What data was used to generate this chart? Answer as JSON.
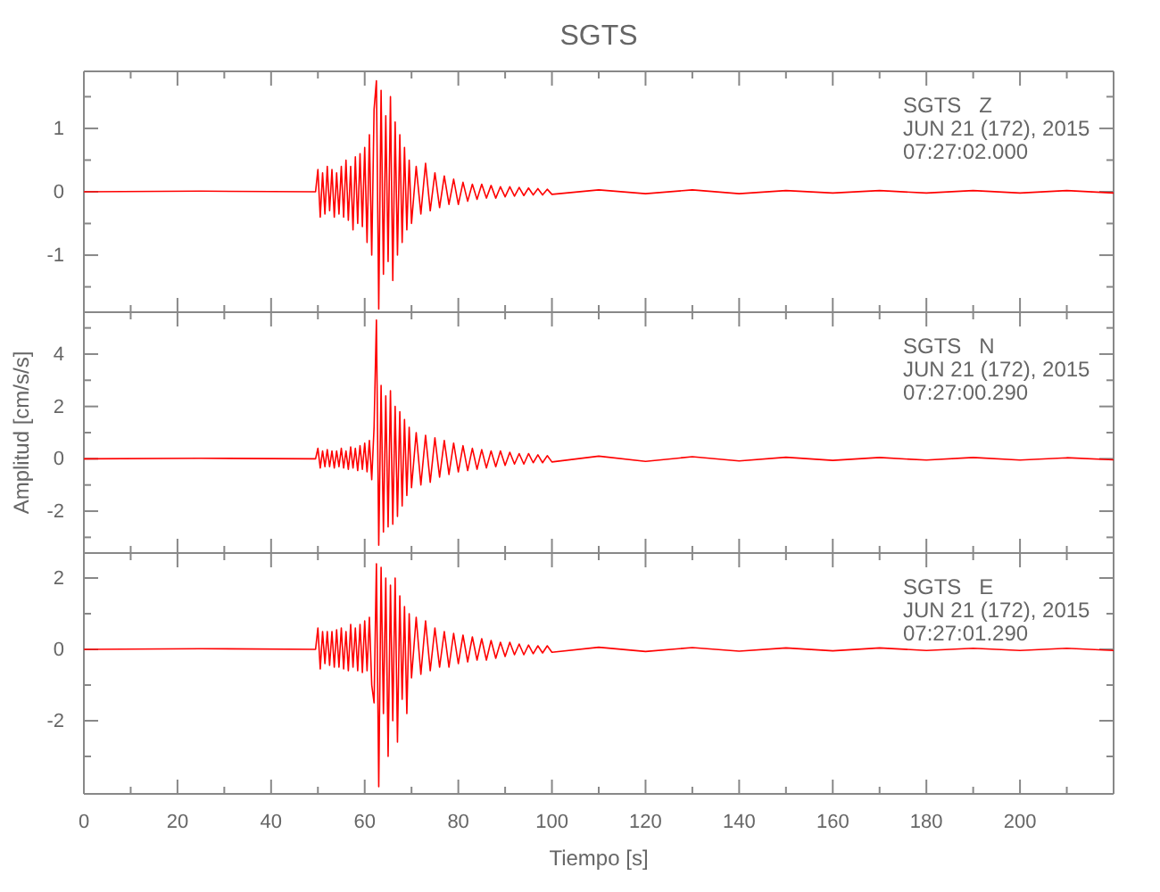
{
  "chart_data": [
    {
      "type": "line",
      "title": "SGTS",
      "tick_labels": "y",
      "marker": "none",
      "line_style": "solid",
      "grid": false,
      "annotations": [
        "SGTS   Z",
        "JUN 21 (172), 2015",
        "07:27:02.000"
      ],
      "x": [
        0,
        25,
        49.5,
        50,
        50.5,
        51,
        51.5,
        52,
        52.5,
        53,
        53.5,
        54,
        54.5,
        55,
        55.5,
        56,
        56.5,
        57,
        57.5,
        58,
        58.5,
        59,
        59.5,
        60,
        60.5,
        61,
        61.5,
        62,
        62.5,
        63,
        63.5,
        64,
        64.5,
        65,
        65.5,
        66,
        66.5,
        67,
        67.5,
        68,
        68.5,
        69,
        69.5,
        70,
        71,
        72,
        73,
        74,
        75,
        76,
        77,
        78,
        79,
        80,
        81,
        82,
        83,
        84,
        85,
        86,
        87,
        88,
        89,
        90,
        91,
        92,
        93,
        94,
        95,
        96,
        97,
        98,
        99,
        100,
        110,
        120,
        130,
        140,
        150,
        160,
        170,
        180,
        190,
        200,
        210,
        220
      ],
      "xlim": [
        0,
        220
      ],
      "ylim": [
        -1.9,
        1.9
      ],
      "xticks": [
        0,
        {
          "value": 10,
          "label": null
        },
        20,
        {
          "value": 30,
          "label": null
        },
        40,
        {
          "value": 50,
          "label": null
        },
        60,
        {
          "value": 70,
          "label": null
        },
        80,
        {
          "value": 90,
          "label": null
        },
        100,
        {
          "value": 110,
          "label": null
        },
        120,
        {
          "value": 130,
          "label": null
        },
        140,
        {
          "value": 150,
          "label": null
        },
        160,
        {
          "value": 170,
          "label": null
        },
        180,
        {
          "value": 190,
          "label": null
        },
        200,
        {
          "value": 210,
          "label": null
        }
      ],
      "yticks": [
        {
          "value": -1.5,
          "label": null
        },
        -1,
        {
          "value": -0.5,
          "label": null
        },
        0,
        {
          "value": 0.5,
          "label": null
        },
        1,
        {
          "value": 1.5,
          "label": null
        }
      ],
      "series": [
        {
          "color": "#ff0000",
          "values": [
            0,
            0.01,
            0,
            0.35,
            -0.4,
            0.3,
            -0.35,
            0.4,
            -0.3,
            0.35,
            -0.4,
            0.3,
            -0.35,
            0.4,
            -0.4,
            0.5,
            -0.45,
            0.4,
            -0.6,
            0.55,
            -0.5,
            0.6,
            -0.55,
            0.7,
            -0.8,
            0.9,
            -1.0,
            1.3,
            1.75,
            -1.85,
            1.6,
            -1.3,
            1.2,
            -1.1,
            1.5,
            -1.4,
            1.1,
            -1.0,
            0.9,
            -0.8,
            0.7,
            -0.6,
            0.5,
            -0.5,
            0.4,
            -0.35,
            0.45,
            -0.3,
            0.3,
            -0.25,
            0.25,
            -0.2,
            0.2,
            -0.2,
            0.15,
            -0.15,
            0.12,
            -0.12,
            0.12,
            -0.1,
            0.1,
            -0.1,
            0.08,
            -0.08,
            0.08,
            -0.07,
            0.07,
            -0.06,
            0.06,
            -0.05,
            0.05,
            -0.05,
            0.04,
            -0.04,
            0.03,
            -0.03,
            0.03,
            -0.03,
            0.02,
            -0.02,
            0.02,
            -0.02,
            0.02,
            -0.02,
            0.02,
            -0.02
          ]
        }
      ]
    },
    {
      "type": "line",
      "ylabel": "Amplitud [cm/s/s]",
      "tick_labels": "y",
      "marker": "none",
      "line_style": "solid",
      "grid": false,
      "annotations": [
        "SGTS   N",
        "JUN 21 (172), 2015",
        "07:27:00.290"
      ],
      "x": [
        0,
        25,
        49.5,
        50,
        50.5,
        51,
        51.5,
        52,
        52.5,
        53,
        53.5,
        54,
        54.5,
        55,
        55.5,
        56,
        56.5,
        57,
        57.5,
        58,
        58.5,
        59,
        59.5,
        60,
        60.5,
        61,
        61.5,
        62,
        62.5,
        63,
        63.5,
        64,
        64.5,
        65,
        65.5,
        66,
        66.5,
        67,
        67.5,
        68,
        68.5,
        69,
        69.5,
        70,
        71,
        72,
        73,
        74,
        75,
        76,
        77,
        78,
        79,
        80,
        81,
        82,
        83,
        84,
        85,
        86,
        87,
        88,
        89,
        90,
        91,
        92,
        93,
        94,
        95,
        96,
        97,
        98,
        99,
        100,
        110,
        120,
        130,
        140,
        150,
        160,
        170,
        180,
        190,
        200,
        210,
        220
      ],
      "xlim": [
        0,
        220
      ],
      "ylim": [
        -3.6,
        5.6
      ],
      "xticks": [
        0,
        {
          "value": 10,
          "label": null
        },
        20,
        {
          "value": 30,
          "label": null
        },
        40,
        {
          "value": 50,
          "label": null
        },
        60,
        {
          "value": 70,
          "label": null
        },
        80,
        {
          "value": 90,
          "label": null
        },
        100,
        {
          "value": 110,
          "label": null
        },
        120,
        {
          "value": 130,
          "label": null
        },
        140,
        {
          "value": 150,
          "label": null
        },
        160,
        {
          "value": 170,
          "label": null
        },
        180,
        {
          "value": 190,
          "label": null
        },
        200,
        {
          "value": 210,
          "label": null
        }
      ],
      "yticks": [
        {
          "value": -3,
          "label": null
        },
        -2,
        {
          "value": -1,
          "label": null
        },
        0,
        {
          "value": 1,
          "label": null
        },
        2,
        {
          "value": 3,
          "label": null
        },
        4,
        {
          "value": 5,
          "label": null
        }
      ],
      "series": [
        {
          "color": "#ff0000",
          "values": [
            0,
            0.02,
            0,
            0.4,
            -0.35,
            0.3,
            -0.3,
            0.35,
            -0.3,
            0.3,
            -0.35,
            0.3,
            -0.3,
            0.4,
            -0.35,
            0.3,
            -0.4,
            0.45,
            -0.35,
            0.4,
            -0.45,
            0.5,
            -0.4,
            0.6,
            -0.5,
            0.7,
            -0.8,
            1.2,
            5.3,
            -3.3,
            2.8,
            -2.8,
            2.4,
            -2.6,
            2.6,
            -2.5,
            2.0,
            -2.2,
            1.8,
            -1.8,
            1.5,
            -1.4,
            1.2,
            -1.1,
            1.0,
            -1.0,
            0.9,
            -0.9,
            0.8,
            -0.7,
            0.7,
            -0.6,
            0.6,
            -0.5,
            0.5,
            -0.45,
            0.4,
            -0.4,
            0.35,
            -0.35,
            0.3,
            -0.3,
            0.3,
            -0.25,
            0.25,
            -0.2,
            0.2,
            -0.2,
            0.2,
            -0.15,
            0.15,
            -0.15,
            0.12,
            -0.12,
            0.1,
            -0.1,
            0.08,
            -0.08,
            0.06,
            -0.06,
            0.05,
            -0.05,
            0.05,
            -0.05,
            0.04,
            -0.04
          ]
        }
      ]
    },
    {
      "type": "line",
      "xlabel": "Tiempo [s]",
      "marker": "none",
      "line_style": "solid",
      "grid": false,
      "annotations": [
        "SGTS   E",
        "JUN 21 (172), 2015",
        "07:27:01.290"
      ],
      "x": [
        0,
        25,
        49.5,
        50,
        50.5,
        51,
        51.5,
        52,
        52.5,
        53,
        53.5,
        54,
        54.5,
        55,
        55.5,
        56,
        56.5,
        57,
        57.5,
        58,
        58.5,
        59,
        59.5,
        60,
        60.5,
        61,
        61.5,
        62,
        62.5,
        63,
        63.5,
        64,
        64.5,
        65,
        65.5,
        66,
        66.5,
        67,
        67.5,
        68,
        68.5,
        69,
        69.5,
        70,
        71,
        72,
        73,
        74,
        75,
        76,
        77,
        78,
        79,
        80,
        81,
        82,
        83,
        84,
        85,
        86,
        87,
        88,
        89,
        90,
        91,
        92,
        93,
        94,
        95,
        96,
        97,
        98,
        99,
        100,
        110,
        120,
        130,
        140,
        150,
        160,
        170,
        180,
        190,
        200,
        210,
        220
      ],
      "xlim": [
        0,
        220
      ],
      "ylim": [
        -4.05,
        2.7
      ],
      "xticks": [
        0,
        {
          "value": 10,
          "label": null
        },
        20,
        {
          "value": 30,
          "label": null
        },
        40,
        {
          "value": 50,
          "label": null
        },
        60,
        {
          "value": 70,
          "label": null
        },
        80,
        {
          "value": 90,
          "label": null
        },
        100,
        {
          "value": 110,
          "label": null
        },
        120,
        {
          "value": 130,
          "label": null
        },
        140,
        {
          "value": 150,
          "label": null
        },
        160,
        {
          "value": 170,
          "label": null
        },
        180,
        {
          "value": 190,
          "label": null
        },
        200,
        {
          "value": 210,
          "label": null
        }
      ],
      "yticks": [
        {
          "value": -3,
          "label": null
        },
        -2,
        {
          "value": -1,
          "label": null
        },
        0,
        {
          "value": 1,
          "label": null
        },
        2
      ],
      "series": [
        {
          "color": "#ff0000",
          "values": [
            0,
            0.02,
            0,
            0.6,
            -0.55,
            0.5,
            -0.4,
            0.5,
            -0.45,
            0.5,
            -0.5,
            0.55,
            -0.5,
            0.6,
            -0.55,
            0.5,
            -0.6,
            0.7,
            -0.5,
            0.6,
            -0.6,
            0.7,
            -0.65,
            0.8,
            -0.6,
            0.9,
            -1.0,
            -1.5,
            2.4,
            -3.85,
            2.3,
            -1.8,
            2.0,
            -3.0,
            1.8,
            -2.0,
            2.0,
            -2.6,
            1.5,
            -1.4,
            1.2,
            -1.8,
            1.0,
            -0.8,
            0.9,
            -0.7,
            0.8,
            -0.6,
            0.6,
            -0.5,
            0.5,
            -0.5,
            0.45,
            -0.4,
            0.4,
            -0.35,
            0.35,
            -0.3,
            0.3,
            -0.3,
            0.25,
            -0.25,
            0.2,
            -0.2,
            0.2,
            -0.15,
            0.15,
            -0.15,
            0.12,
            -0.12,
            0.1,
            -0.1,
            0.1,
            -0.08,
            0.06,
            -0.06,
            0.05,
            -0.05,
            0.04,
            -0.04,
            0.04,
            -0.03,
            0.03,
            -0.03,
            0.03,
            -0.03
          ]
        }
      ]
    }
  ]
}
